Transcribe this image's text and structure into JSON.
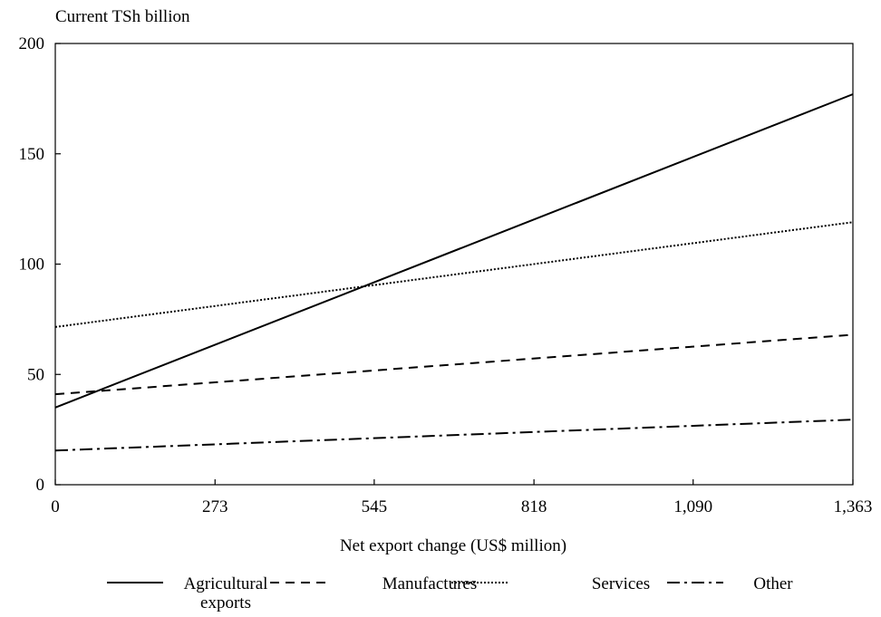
{
  "chart_data": {
    "type": "line",
    "ylabel": "Current TSh billion",
    "xlabel": "Net export change (US$ million)",
    "xlim": [
      0,
      1363
    ],
    "ylim": [
      0,
      200
    ],
    "x_ticks": [
      0,
      273,
      545,
      818,
      1090,
      1363
    ],
    "x_tick_labels": [
      "0",
      "273",
      "545",
      "818",
      "1,090",
      "1,363"
    ],
    "y_ticks": [
      0,
      50,
      100,
      150,
      200
    ],
    "y_tick_labels": [
      "0",
      "50",
      "100",
      "150",
      "200"
    ],
    "grid": false,
    "legend_position": "bottom",
    "series": [
      {
        "name": "Agricultural exports",
        "name_lines": [
          "Agricultural",
          "exports"
        ],
        "style": "solid",
        "x": [
          0,
          1363
        ],
        "y": [
          35,
          177
        ]
      },
      {
        "name": "Manufactures",
        "name_lines": [
          "Manufactures"
        ],
        "style": "dashed",
        "x": [
          0,
          1363
        ],
        "y": [
          41,
          68
        ]
      },
      {
        "name": "Services",
        "name_lines": [
          "Services"
        ],
        "style": "dotted",
        "x": [
          0,
          1363
        ],
        "y": [
          71.5,
          119
        ]
      },
      {
        "name": "Other",
        "name_lines": [
          "Other"
        ],
        "style": "dashdot",
        "x": [
          0,
          1363
        ],
        "y": [
          15.5,
          29.5
        ]
      }
    ]
  }
}
